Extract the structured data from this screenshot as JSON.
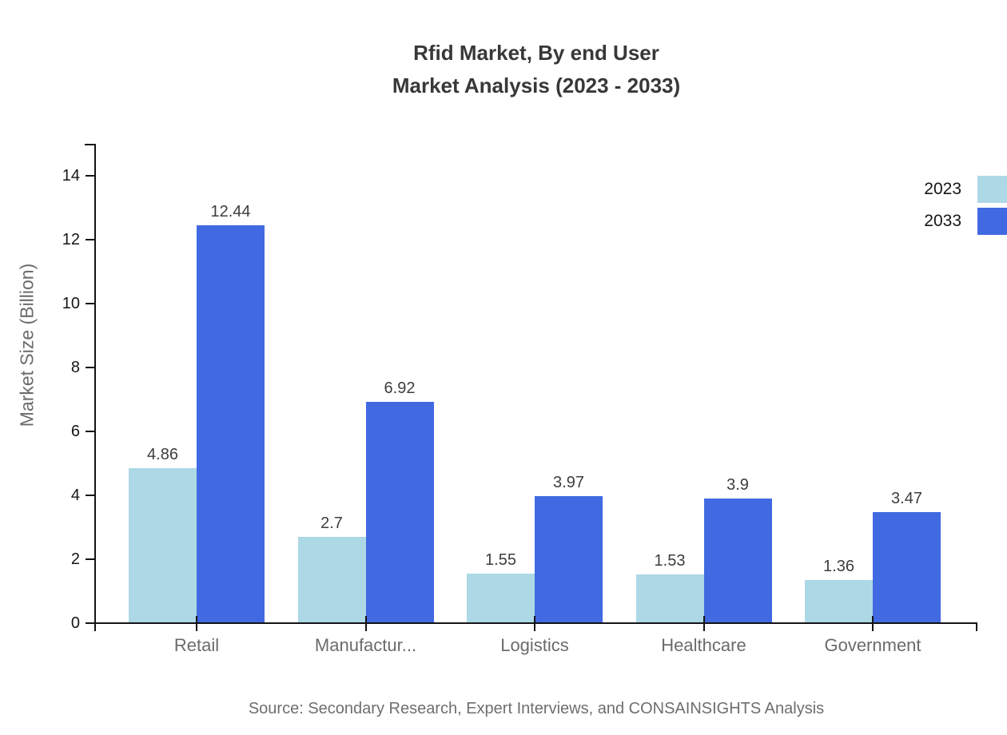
{
  "title": {
    "line1": "Rfid Market, By end User",
    "line2": "Market Analysis (2023 - 2033)"
  },
  "source": "Source: Secondary Research, Expert Interviews, and CONSAINSIGHTS Analysis",
  "chart_data": {
    "type": "bar",
    "title": "Rfid Market, By end User Market Analysis (2023 - 2033)",
    "categories": [
      "Retail",
      "Manufactur...",
      "Logistics",
      "Healthcare",
      "Government"
    ],
    "series": [
      {
        "name": "2023",
        "color": "#ADD8E6",
        "values": [
          4.86,
          2.7,
          1.55,
          1.53,
          1.36
        ]
      },
      {
        "name": "2033",
        "color": "#4169E1",
        "values": [
          12.44,
          6.92,
          3.97,
          3.9,
          3.47
        ]
      }
    ],
    "xlabel": "",
    "ylabel": "Market Size (Billion)",
    "ylim": [
      0,
      15
    ],
    "yticks": [
      0,
      2,
      4,
      6,
      8,
      10,
      12,
      14
    ],
    "grid": false,
    "legend_position": "top-right",
    "value_labels": true,
    "axis_color": "#141414"
  }
}
